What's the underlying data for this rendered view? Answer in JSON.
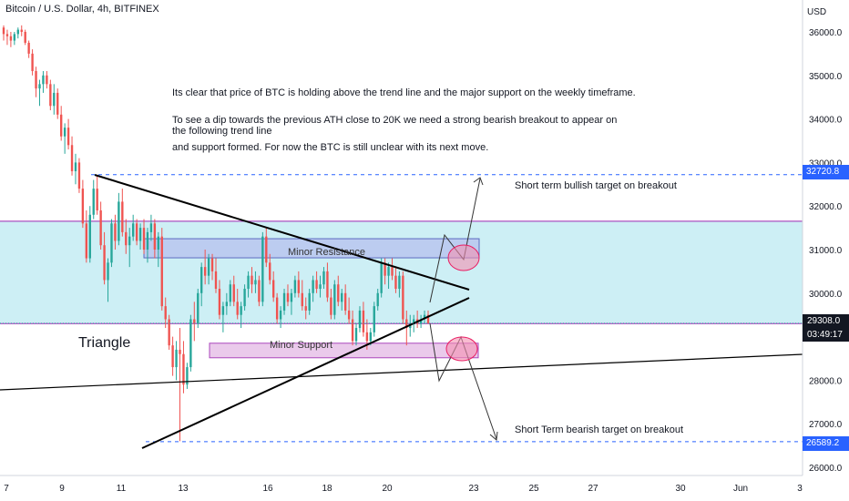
{
  "header": {
    "title": "Bitcoin / U.S. Dollar, 4h, BITFINEX",
    "currency": "USD"
  },
  "notes": [
    "Its clear that price of BTC is holding above the trend line and the major support on the weekly timeframe.",
    "To see a dip towards the previous ATH close to 20K we need a strong bearish breakout to appear on",
    "the following trend line",
    "and support formed. For now the BTC is still unclear with its next move."
  ],
  "labels": {
    "triangle": "Triangle",
    "minor_resistance": "Minor Resistance",
    "minor_support": "Minor Support",
    "bullish_target": "Short term bullish target on breakout",
    "bearish_target": "Short Term bearish target on breakout"
  },
  "price_tags": {
    "bullish": "32720.8",
    "current": "29308.0",
    "countdown": "03:49:17",
    "bearish": "26589.2"
  },
  "colors": {
    "up": "#26a69a",
    "down": "#ef5350",
    "accent": "#2962ff",
    "zone": "#cdeff5",
    "resistance_box": "#b8c6ee",
    "support_box": "#e6c1e8"
  },
  "chart_data": {
    "type": "candlestick",
    "title": "Bitcoin / U.S. Dollar, 4h, BITFINEX",
    "ylabel": "USD",
    "ylim": [
      25750,
      36500
    ],
    "y_ticks": [
      "36000.0",
      "35000.0",
      "34000.0",
      "33000.0",
      "32000.0",
      "31000.0",
      "30000.0",
      "28000.0",
      "27000.0",
      "26000.0"
    ],
    "x_ticks": [
      "7",
      "9",
      "11",
      "13",
      "16",
      "18",
      "20",
      "23",
      "25",
      "27",
      "30",
      "Jun",
      "3"
    ],
    "levels": {
      "bullish_target": 32720.8,
      "current": 29308.0,
      "bearish_target": 26589.2
    },
    "zones": {
      "major_support": [
        29300,
        31650
      ],
      "minor_resistance": [
        30750,
        31000
      ],
      "minor_support": [
        28650,
        28850
      ]
    },
    "ohlc": [
      [
        36100,
        36150,
        35800,
        35950
      ],
      [
        35950,
        36050,
        35700,
        35900
      ],
      [
        35900,
        36000,
        35650,
        35800
      ],
      [
        35800,
        36000,
        35700,
        35950
      ],
      [
        35950,
        36100,
        35850,
        36050
      ],
      [
        36050,
        36150,
        35900,
        36000
      ],
      [
        36000,
        36050,
        35700,
        35750
      ],
      [
        35750,
        35800,
        35400,
        35500
      ],
      [
        35500,
        35600,
        35000,
        35100
      ],
      [
        35100,
        35200,
        34500,
        34700
      ],
      [
        34700,
        34900,
        34300,
        34800
      ],
      [
        34800,
        35100,
        34600,
        35000
      ],
      [
        35000,
        35100,
        34700,
        34800
      ],
      [
        34800,
        34900,
        34200,
        34300
      ],
      [
        34300,
        34800,
        34100,
        34600
      ],
      [
        34600,
        34700,
        34000,
        34100
      ],
      [
        34100,
        34300,
        33500,
        33600
      ],
      [
        33600,
        33900,
        33200,
        33800
      ],
      [
        33800,
        34000,
        33300,
        33400
      ],
      [
        33400,
        33600,
        32700,
        32800
      ],
      [
        32800,
        33200,
        32500,
        33000
      ],
      [
        33000,
        33100,
        32300,
        32400
      ],
      [
        32400,
        32600,
        31500,
        31600
      ],
      [
        31600,
        31900,
        30700,
        30800
      ],
      [
        30800,
        32000,
        30700,
        31800
      ],
      [
        31800,
        32600,
        31700,
        32400
      ],
      [
        32400,
        32700,
        31800,
        31900
      ],
      [
        31900,
        32100,
        31000,
        31100
      ],
      [
        31100,
        31400,
        30200,
        30300
      ],
      [
        30300,
        30800,
        29800,
        30700
      ],
      [
        30700,
        31700,
        30600,
        31600
      ],
      [
        31600,
        31800,
        31000,
        31200
      ],
      [
        31200,
        32300,
        31100,
        32100
      ],
      [
        32100,
        32400,
        31300,
        31400
      ],
      [
        31400,
        31700,
        30900,
        31100
      ],
      [
        31100,
        31500,
        30600,
        31300
      ],
      [
        31300,
        31800,
        31200,
        31600
      ],
      [
        31600,
        31700,
        31100,
        31200
      ],
      [
        31200,
        31600,
        31000,
        31500
      ],
      [
        31500,
        31700,
        30900,
        31000
      ],
      [
        31000,
        31500,
        30700,
        31400
      ],
      [
        31400,
        31800,
        31200,
        31600
      ],
      [
        31600,
        31700,
        30800,
        31000
      ],
      [
        31000,
        31400,
        30600,
        31300
      ],
      [
        31300,
        31500,
        29600,
        29700
      ],
      [
        29700,
        29900,
        29200,
        29400
      ],
      [
        29400,
        29500,
        28700,
        28800
      ],
      [
        28800,
        29000,
        28100,
        28300
      ],
      [
        28300,
        28900,
        28000,
        28700
      ],
      [
        28700,
        29200,
        26600,
        28600
      ],
      [
        28600,
        28900,
        27700,
        27900
      ],
      [
        27900,
        28400,
        27800,
        28300
      ],
      [
        28300,
        29500,
        28200,
        29400
      ],
      [
        29400,
        29800,
        28900,
        29300
      ],
      [
        29300,
        30100,
        29200,
        30000
      ],
      [
        30000,
        30700,
        29700,
        30600
      ],
      [
        30600,
        31000,
        30200,
        30400
      ],
      [
        30400,
        30900,
        30200,
        30800
      ],
      [
        30800,
        30900,
        30300,
        30500
      ],
      [
        30500,
        30800,
        30000,
        30100
      ],
      [
        30100,
        30300,
        29400,
        29500
      ],
      [
        29500,
        29800,
        29100,
        29700
      ],
      [
        29700,
        30000,
        29500,
        29800
      ],
      [
        29800,
        30300,
        29700,
        30200
      ],
      [
        30200,
        30400,
        29700,
        29800
      ],
      [
        29800,
        30100,
        29400,
        29500
      ],
      [
        29500,
        29800,
        29200,
        29700
      ],
      [
        29700,
        30200,
        29600,
        30100
      ],
      [
        30100,
        30500,
        29900,
        30400
      ],
      [
        30400,
        30600,
        30000,
        30200
      ],
      [
        30200,
        30500,
        30000,
        30300
      ],
      [
        30300,
        30400,
        29700,
        29800
      ],
      [
        29800,
        31400,
        29700,
        31300
      ],
      [
        31300,
        31500,
        30600,
        30700
      ],
      [
        30700,
        30900,
        30200,
        30300
      ],
      [
        30300,
        30500,
        29800,
        29900
      ],
      [
        29900,
        30000,
        29300,
        29400
      ],
      [
        29400,
        29700,
        29200,
        29600
      ],
      [
        29600,
        30100,
        29500,
        30000
      ],
      [
        30000,
        30200,
        29700,
        29800
      ],
      [
        29800,
        30100,
        29500,
        30000
      ],
      [
        30000,
        30400,
        29900,
        30300
      ],
      [
        30300,
        30500,
        29900,
        30000
      ],
      [
        30000,
        30300,
        29600,
        29700
      ],
      [
        29700,
        29900,
        29400,
        29600
      ],
      [
        29600,
        30100,
        29500,
        30000
      ],
      [
        30000,
        30400,
        29800,
        30300
      ],
      [
        30300,
        30500,
        30000,
        30100
      ],
      [
        30100,
        30400,
        29900,
        30200
      ],
      [
        30200,
        30600,
        30100,
        30500
      ],
      [
        30500,
        30700,
        29800,
        29900
      ],
      [
        29900,
        30100,
        29400,
        29500
      ],
      [
        29500,
        30300,
        29400,
        30200
      ],
      [
        30200,
        30400,
        29700,
        29800
      ],
      [
        29800,
        30100,
        29600,
        30000
      ],
      [
        30000,
        30200,
        29500,
        29600
      ],
      [
        29600,
        29900,
        29300,
        29400
      ],
      [
        29400,
        29600,
        28800,
        28900
      ],
      [
        28900,
        29300,
        28800,
        29200
      ],
      [
        29200,
        29700,
        29100,
        29600
      ],
      [
        29600,
        29800,
        29000,
        29100
      ],
      [
        29100,
        29400,
        28700,
        28900
      ],
      [
        28900,
        29200,
        28800,
        29100
      ],
      [
        29100,
        29800,
        29000,
        29700
      ],
      [
        29700,
        30100,
        29600,
        30000
      ],
      [
        30000,
        30800,
        29900,
        30700
      ],
      [
        30700,
        30800,
        30200,
        30400
      ],
      [
        30400,
        30700,
        30100,
        30600
      ],
      [
        30600,
        30800,
        30300,
        30400
      ],
      [
        30400,
        30600,
        30000,
        30100
      ],
      [
        30100,
        30500,
        29900,
        30400
      ],
      [
        30400,
        30500,
        29300,
        29400
      ],
      [
        29400,
        29600,
        28800,
        29200
      ],
      [
        29200,
        29500,
        29000,
        29300
      ],
      [
        29300,
        29500,
        29100,
        29400
      ],
      [
        29400,
        29600,
        29200,
        29300
      ],
      [
        29300,
        29500,
        29200,
        29400
      ],
      [
        29400,
        29600,
        29300,
        29500
      ],
      [
        29500,
        29600,
        29300,
        29308
      ]
    ]
  }
}
